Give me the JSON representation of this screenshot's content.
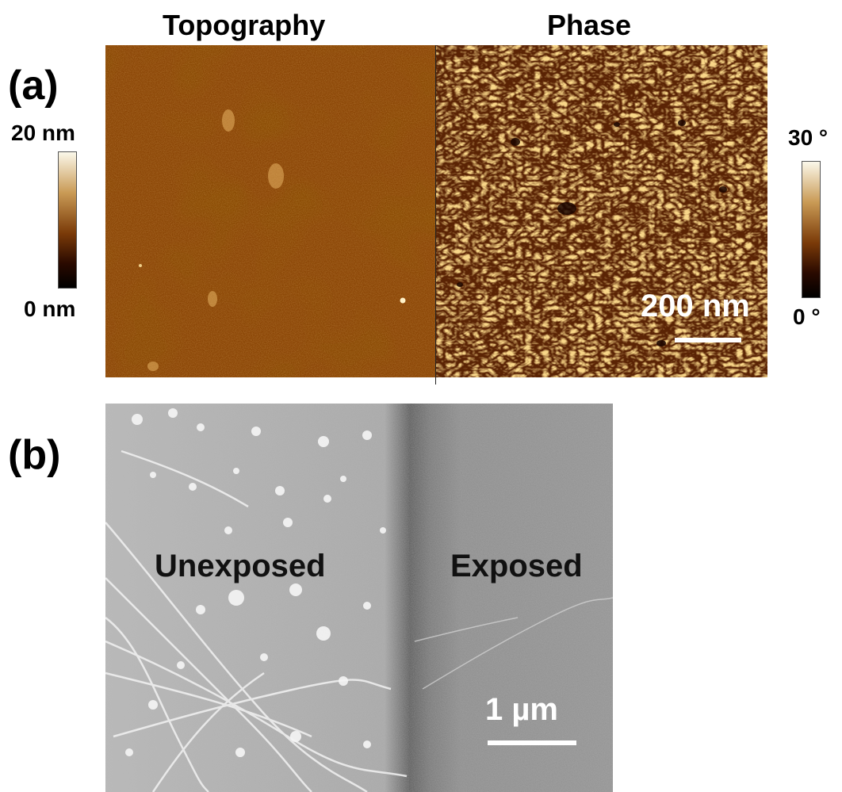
{
  "panel_a": {
    "label": "(a)",
    "topography": {
      "title": "Topography",
      "colorbar_max": "20 nm",
      "colorbar_min": "0 nm"
    },
    "phase": {
      "title": "Phase",
      "colorbar_max": "30 °",
      "colorbar_min": "0 °",
      "scale_bar": "200 nm"
    },
    "colors": {
      "afm_dark": "#2b0a00",
      "afm_mid": "#8a4405",
      "afm_bright": "#f5f0d8"
    }
  },
  "panel_b": {
    "label": "(b)",
    "left_region": "Unexposed",
    "right_region": "Exposed",
    "scale_bar": "1 µm"
  }
}
